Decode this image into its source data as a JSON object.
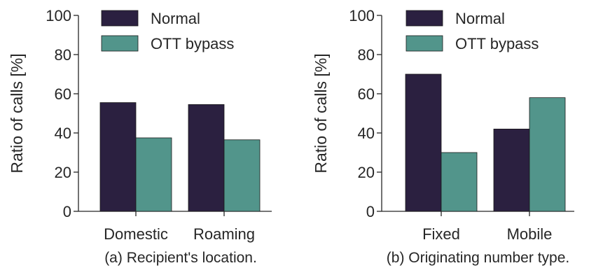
{
  "chart_data": [
    {
      "type": "bar",
      "caption": "(a) Recipient's location.",
      "ylabel": "Ratio of calls [%]",
      "ylim": [
        0,
        100
      ],
      "yticks": [
        0,
        20,
        40,
        60,
        80,
        100
      ],
      "categories": [
        "Domestic",
        "Roaming"
      ],
      "series": [
        {
          "name": "Normal",
          "color": "#2b2040",
          "values": [
            55.5,
            54.5
          ]
        },
        {
          "name": "OTT bypass",
          "color": "#52958b",
          "values": [
            37.5,
            36.5
          ]
        }
      ],
      "legend": "top-left",
      "grid": false
    },
    {
      "type": "bar",
      "caption": "(b) Originating number type.",
      "ylabel": "Ratio of calls [%]",
      "ylim": [
        0,
        100
      ],
      "yticks": [
        0,
        20,
        40,
        60,
        80,
        100
      ],
      "categories": [
        "Fixed",
        "Mobile"
      ],
      "series": [
        {
          "name": "Normal",
          "color": "#2b2040",
          "values": [
            70,
            42
          ]
        },
        {
          "name": "OTT bypass",
          "color": "#52958b",
          "values": [
            30,
            58
          ]
        }
      ],
      "legend": "top-left",
      "grid": false
    }
  ]
}
